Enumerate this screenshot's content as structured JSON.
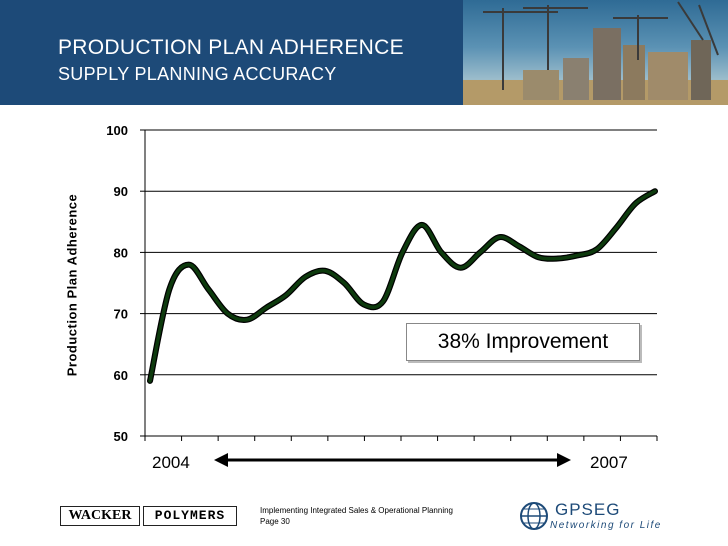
{
  "header": {
    "title": "PRODUCTION PLAN ADHERENCE",
    "subtitle": "SUPPLY PLANNING ACCURACY"
  },
  "chart_data": {
    "type": "line",
    "ylabel": "Production Plan Adherence",
    "ylim": [
      50,
      100
    ],
    "yticks": [
      "50",
      "60",
      "70",
      "80",
      "90",
      "100"
    ],
    "grid": true,
    "series": [
      {
        "color": "#0d3a0d",
        "values": [
          59,
          74,
          78,
          74,
          70,
          69,
          71,
          73,
          76,
          77,
          75,
          71.5,
          72,
          80,
          84.5,
          80,
          77.5,
          80,
          82.5,
          81,
          79.2,
          79,
          79.5,
          80.5,
          84,
          88,
          90
        ]
      }
    ],
    "x_start_label": "2004",
    "x_end_label": "2007",
    "annotation": "38% Improvement"
  },
  "footer": {
    "line1": "Implementing Integrated Sales & Operational Planning",
    "line2": "Page 30",
    "logo_left_1": "WACKER",
    "logo_left_2": "POLYMERS",
    "logo_right_name": "GPSEG",
    "logo_right_tag": "Networking for Life"
  }
}
